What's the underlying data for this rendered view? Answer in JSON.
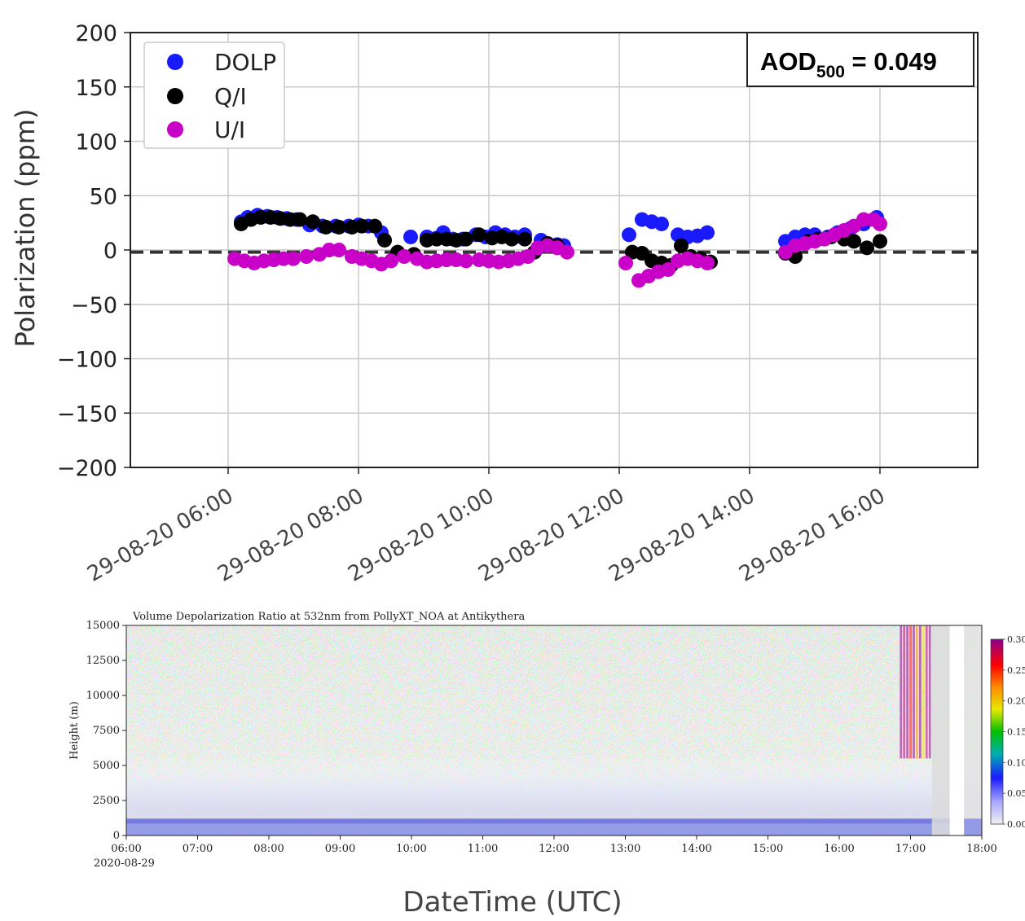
{
  "chart_data": [
    {
      "type": "scatter",
      "ylabel": "Polarization  (ppm)",
      "ylim": [
        -200,
        200
      ],
      "yticks": [
        "200",
        "150",
        "100",
        "50",
        "0",
        "−50",
        "−100",
        "−150",
        "−200"
      ],
      "ytick_values": [
        200,
        150,
        100,
        50,
        0,
        -50,
        -100,
        -150,
        -200
      ],
      "xlim_hours": [
        4.5,
        17.5
      ],
      "xticks": [
        "29-08-20 06:00",
        "29-08-20 08:00",
        "29-08-20 10:00",
        "29-08-20 12:00",
        "29-08-20 14:00",
        "29-08-20 16:00"
      ],
      "xtick_hours": [
        6,
        8,
        10,
        12,
        14,
        16
      ],
      "grid": true,
      "legend_position": "top-left",
      "reference_line": {
        "y": -2,
        "style": "dashed",
        "color": "#333333"
      },
      "annotation": {
        "main": "AOD",
        "sub": "500",
        "rest": " = 0.049"
      },
      "series": [
        {
          "name": "DOLP",
          "color": "#1a1aff",
          "points": [
            [
              6.2,
              26
            ],
            [
              6.3,
              30
            ],
            [
              6.45,
              32
            ],
            [
              6.6,
              31
            ],
            [
              6.75,
              30
            ],
            [
              6.9,
              29
            ],
            [
              7.05,
              28
            ],
            [
              7.25,
              23
            ],
            [
              7.45,
              22
            ],
            [
              7.65,
              22
            ],
            [
              7.85,
              22
            ],
            [
              8.0,
              23
            ],
            [
              8.15,
              22
            ],
            [
              8.35,
              16
            ],
            [
              8.8,
              12
            ],
            [
              9.05,
              12
            ],
            [
              9.2,
              11
            ],
            [
              9.3,
              16
            ],
            [
              9.45,
              10
            ],
            [
              9.6,
              10
            ],
            [
              9.8,
              14
            ],
            [
              9.95,
              12
            ],
            [
              10.1,
              16
            ],
            [
              10.25,
              14
            ],
            [
              10.4,
              12
            ],
            [
              10.55,
              14
            ],
            [
              10.8,
              9
            ],
            [
              11.05,
              5
            ],
            [
              11.15,
              4
            ],
            [
              12.15,
              14
            ],
            [
              12.35,
              28
            ],
            [
              12.5,
              26
            ],
            [
              12.65,
              24
            ],
            [
              12.9,
              14
            ],
            [
              13.05,
              12
            ],
            [
              13.2,
              13
            ],
            [
              13.35,
              16
            ],
            [
              14.55,
              8
            ],
            [
              14.7,
              12
            ],
            [
              14.85,
              14
            ],
            [
              15.0,
              14
            ],
            [
              15.2,
              12
            ],
            [
              15.35,
              16
            ],
            [
              15.55,
              20
            ],
            [
              15.75,
              24
            ],
            [
              15.95,
              30
            ]
          ]
        },
        {
          "name": "Q/I",
          "color": "#000000",
          "points": [
            [
              6.2,
              24
            ],
            [
              6.35,
              28
            ],
            [
              6.5,
              30
            ],
            [
              6.65,
              30
            ],
            [
              6.8,
              29
            ],
            [
              6.95,
              28
            ],
            [
              7.1,
              28
            ],
            [
              7.3,
              26
            ],
            [
              7.5,
              21
            ],
            [
              7.7,
              21
            ],
            [
              7.9,
              21
            ],
            [
              8.05,
              22
            ],
            [
              8.25,
              22
            ],
            [
              8.4,
              9
            ],
            [
              8.6,
              -2
            ],
            [
              8.85,
              -4
            ],
            [
              9.05,
              9
            ],
            [
              9.2,
              10
            ],
            [
              9.35,
              10
            ],
            [
              9.5,
              9
            ],
            [
              9.65,
              10
            ],
            [
              9.85,
              14
            ],
            [
              10.05,
              11
            ],
            [
              10.2,
              12
            ],
            [
              10.35,
              10
            ],
            [
              10.55,
              10
            ],
            [
              10.7,
              -2
            ],
            [
              10.9,
              6
            ],
            [
              11.05,
              4
            ],
            [
              12.2,
              -2
            ],
            [
              12.35,
              -3
            ],
            [
              12.5,
              -10
            ],
            [
              12.65,
              -12
            ],
            [
              12.8,
              -14
            ],
            [
              12.95,
              4
            ],
            [
              13.1,
              -6
            ],
            [
              13.25,
              -8
            ],
            [
              13.4,
              -11
            ],
            [
              14.55,
              -3
            ],
            [
              14.7,
              -6
            ],
            [
              14.9,
              8
            ],
            [
              15.05,
              10
            ],
            [
              15.25,
              12
            ],
            [
              15.45,
              10
            ],
            [
              15.6,
              8
            ],
            [
              15.8,
              2
            ],
            [
              16.0,
              8
            ]
          ]
        },
        {
          "name": "U/I",
          "color": "#c800c8",
          "points": [
            [
              6.1,
              -8
            ],
            [
              6.25,
              -10
            ],
            [
              6.4,
              -12
            ],
            [
              6.55,
              -10
            ],
            [
              6.7,
              -9
            ],
            [
              6.85,
              -8
            ],
            [
              7.0,
              -8
            ],
            [
              7.2,
              -6
            ],
            [
              7.4,
              -4
            ],
            [
              7.55,
              0
            ],
            [
              7.7,
              0
            ],
            [
              7.9,
              -6
            ],
            [
              8.05,
              -8
            ],
            [
              8.2,
              -10
            ],
            [
              8.35,
              -13
            ],
            [
              8.5,
              -10
            ],
            [
              8.7,
              -6
            ],
            [
              8.9,
              -8
            ],
            [
              9.05,
              -11
            ],
            [
              9.2,
              -10
            ],
            [
              9.35,
              -9
            ],
            [
              9.5,
              -9
            ],
            [
              9.65,
              -10
            ],
            [
              9.85,
              -9
            ],
            [
              10.0,
              -10
            ],
            [
              10.15,
              -11
            ],
            [
              10.3,
              -10
            ],
            [
              10.45,
              -8
            ],
            [
              10.6,
              -6
            ],
            [
              10.75,
              2
            ],
            [
              10.9,
              4
            ],
            [
              11.05,
              2
            ],
            [
              11.2,
              -2
            ],
            [
              12.1,
              -12
            ],
            [
              12.3,
              -28
            ],
            [
              12.45,
              -24
            ],
            [
              12.6,
              -20
            ],
            [
              12.75,
              -18
            ],
            [
              12.9,
              -10
            ],
            [
              13.05,
              -8
            ],
            [
              13.2,
              -10
            ],
            [
              13.35,
              -12
            ],
            [
              14.55,
              -2
            ],
            [
              14.7,
              4
            ],
            [
              14.85,
              6
            ],
            [
              15.0,
              8
            ],
            [
              15.15,
              10
            ],
            [
              15.3,
              14
            ],
            [
              15.45,
              18
            ],
            [
              15.6,
              22
            ],
            [
              15.75,
              28
            ],
            [
              15.9,
              28
            ],
            [
              16.0,
              24
            ]
          ]
        }
      ]
    },
    {
      "type": "heatmap",
      "title": "Volume Depolarization Ratio at 532nm from PollyXT_NOA at Antikythera",
      "ylabel": "Height (m)",
      "xlabel": "DateTime (UTC)",
      "ylim": [
        0,
        15000
      ],
      "yticks": [
        "15000",
        "12500",
        "10000",
        "7500",
        "5000",
        "2500",
        "0"
      ],
      "ytick_values": [
        15000,
        12500,
        10000,
        7500,
        5000,
        2500,
        0
      ],
      "xticks": [
        "06:00",
        "07:00",
        "08:00",
        "09:00",
        "10:00",
        "11:00",
        "12:00",
        "13:00",
        "14:00",
        "15:00",
        "16:00",
        "17:00",
        "18:00"
      ],
      "xtick_hours": [
        6,
        7,
        8,
        9,
        10,
        11,
        12,
        13,
        14,
        15,
        16,
        17,
        18
      ],
      "date_label": "2020-08-29",
      "colorbar": {
        "range": [
          0.0,
          0.3
        ],
        "ticks": [
          "0.30",
          "0.25",
          "0.20",
          "0.15",
          "0.10",
          "0.05",
          "0.00"
        ],
        "tick_values": [
          0.3,
          0.25,
          0.2,
          0.15,
          0.1,
          0.05,
          0.0
        ],
        "colors": [
          "#f0f0f0",
          "#a8a8ff",
          "#1a1aff",
          "#00b0b0",
          "#00c000",
          "#e8e800",
          "#ff8c00",
          "#ff0000",
          "#8b008b"
        ]
      },
      "features": {
        "boundary_layer_top_m": 1200,
        "noise_above_m": 3000,
        "gap_hours": [
          17.55,
          17.75
        ],
        "cloud_hours": [
          16.85,
          17.3
        ]
      }
    }
  ]
}
